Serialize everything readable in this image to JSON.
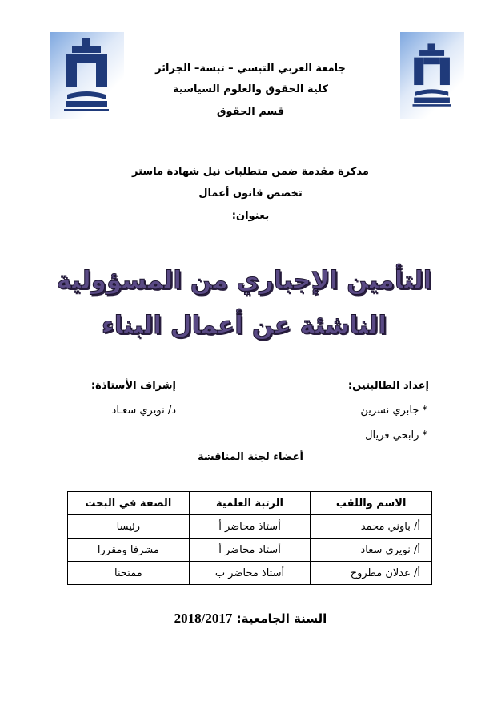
{
  "header": {
    "university": "جامعة العربي التبسي – تبسة– الجزائر",
    "faculty": "كلية الحقوق والعلوم السياسية",
    "department": "قسم الحقوق"
  },
  "logo": {
    "text": "جامعة تبسة UNIVERSITE DE TEBESSA",
    "colors": {
      "primary": "#1f3a7a",
      "background": "#7fa8e0"
    }
  },
  "intro": {
    "purpose": "مذكرة مقدمة ضمن متطلبات نيل شهادة ماستر",
    "specialty": "تخصص قانون أعمال",
    "title_label": "بعنوان:"
  },
  "thesis_title": "التأمين الإجباري من المسؤولية الناشئة عن أعمال البناء",
  "title_color": "#5a4a85",
  "students": {
    "label": "إعداد الطالبتين:",
    "names": [
      "* جابري نسرين",
      "* رابحي فريال"
    ]
  },
  "supervisor": {
    "label": "إشراف الأستاذة:",
    "name": "د/ نويري سعـاد"
  },
  "committee": {
    "heading": "أعضاء لجنة المناقشة",
    "columns": [
      "الاسم واللقب",
      "الرتبة العلمية",
      "الصفة في البحث"
    ],
    "rows": [
      [
        "أ/ باوني محمد",
        "أستاذ محاضر أ",
        "رئيسا"
      ],
      [
        "أ/ نويري سعاد",
        "أستاذ محاضر أ",
        "مشرفا ومقررا"
      ],
      [
        "أ/ عدلان مطروح",
        "أستاذ محاضر ب",
        "ممتحنا"
      ]
    ]
  },
  "academic_year": {
    "label": "السنة الجامعية:",
    "value": "2018/2017"
  }
}
